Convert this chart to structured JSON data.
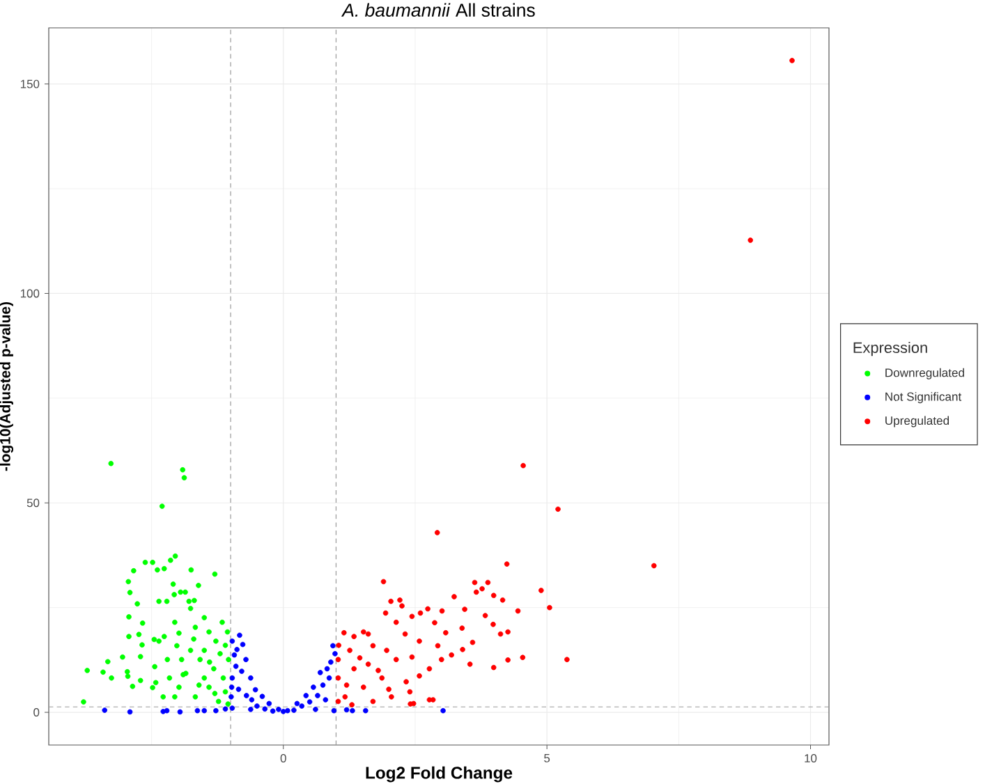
{
  "chart_data": {
    "type": "scatter",
    "title": "*A. baumannii* All strains",
    "xlabel": "Log2 Fold Change",
    "ylabel": "-log10(Adjusted p-value)",
    "legend_title": "Expression",
    "xlim": [
      -4.45,
      10.35
    ],
    "ylim": [
      -7.8,
      163.4
    ],
    "xticks": [
      0,
      5,
      10
    ],
    "yticks": [
      0,
      50,
      100,
      150
    ],
    "grid": true,
    "legend": "right",
    "marker": "circle",
    "ref_lines": [
      {
        "axis": "x",
        "value": -1,
        "line_style": "dashed",
        "color": "#999999"
      },
      {
        "axis": "x",
        "value": 1,
        "line_style": "dashed",
        "color": "#999999"
      },
      {
        "axis": "y",
        "value": 1.3,
        "line_style": "dashed",
        "color": "#999999"
      }
    ],
    "series": [
      {
        "name": "Downregulated",
        "color": "#00ff00",
        "x": [
          -3.27,
          -1.91,
          -1.88,
          -2.3,
          -3.79,
          -3.72,
          -3.42,
          -3.33,
          -3.26,
          -3.05,
          -2.96,
          -2.94,
          -2.91,
          -2.84,
          -2.62,
          -2.48,
          -2.39,
          -2.26,
          -2.14,
          -2.05,
          -1.75,
          -1.3,
          -2.77,
          -2.93,
          -2.67,
          -2.74,
          -2.93,
          -2.68,
          -2.71,
          -2.95,
          -2.86,
          -2.71,
          -2.48,
          -2.45,
          -2.36,
          -2.21,
          -2.09,
          -2.07,
          -1.95,
          -1.86,
          -1.79,
          -1.69,
          -1.61,
          -1.76,
          -2.06,
          -1.98,
          -2.26,
          -2.36,
          -2.44,
          -2.42,
          -2.28,
          -2.06,
          -1.85,
          -1.67,
          -1.5,
          -1.41,
          -1.16,
          -1.28,
          -1.06,
          -1.04,
          -1.14,
          -1.58,
          -1.41,
          -1.67,
          -1.23,
          -1.93,
          -2.2,
          -2.02,
          -1.76,
          -1.5,
          -1.32,
          -1.1,
          -1.98,
          -1.5,
          -2.16,
          -1.2,
          -1.4,
          -1.6,
          -1.9,
          -1.3,
          -1.1,
          -1.7,
          -1.05
        ],
        "values": [
          59.4,
          57.9,
          56.0,
          49.2,
          2.5,
          10.0,
          9.6,
          12.1,
          8.2,
          13.2,
          9.7,
          31.2,
          28.6,
          33.8,
          35.8,
          35.8,
          34.0,
          34.3,
          36.3,
          37.3,
          34.0,
          33.0,
          25.9,
          22.8,
          21.3,
          18.6,
          18.1,
          16.1,
          13.3,
          8.6,
          6.2,
          7.6,
          5.9,
          17.4,
          26.5,
          26.5,
          30.6,
          28.1,
          28.7,
          28.7,
          26.5,
          26.7,
          30.3,
          24.8,
          21.5,
          18.9,
          18.1,
          17.0,
          10.9,
          7.1,
          3.7,
          3.7,
          9.3,
          20.3,
          22.6,
          19.2,
          21.5,
          17.0,
          19.2,
          12.6,
          8.2,
          12.6,
          6.0,
          3.7,
          2.6,
          12.6,
          12.6,
          15.9,
          14.8,
          14.8,
          10.4,
          4.9,
          6.0,
          8.2,
          8.2,
          14.0,
          12.0,
          6.5,
          9.0,
          4.5,
          16.0,
          17.5,
          2.0
        ]
      },
      {
        "name": "Not Significant",
        "color": "#0000ff",
        "x": [
          -3.39,
          -2.91,
          -2.28,
          -2.21,
          -1.96,
          -1.63,
          -1.5,
          -1.28,
          -0.83,
          -0.77,
          -0.97,
          -0.93,
          -0.71,
          -0.79,
          -0.62,
          -0.97,
          -0.53,
          -0.4,
          -0.27,
          -0.09,
          0.0,
          0.08,
          0.26,
          0.43,
          0.57,
          0.7,
          0.83,
          0.94,
          0.87,
          -0.97,
          -0.62,
          0.61,
          0.96,
          1.31,
          1.56,
          3.03,
          -0.99,
          0.98,
          -0.9,
          -0.85,
          -0.7,
          -0.6,
          -0.5,
          -0.35,
          -0.2,
          0.2,
          0.35,
          0.5,
          0.65,
          0.75,
          0.9,
          0.8,
          1.2,
          -1.1,
          -0.98,
          -0.88
        ],
        "values": [
          0.5,
          0.1,
          0.2,
          0.4,
          0.1,
          0.4,
          0.4,
          0.4,
          18.4,
          16.2,
          17.0,
          13.7,
          12.6,
          9.8,
          8.2,
          8.2,
          5.4,
          3.8,
          2.1,
          0.7,
          0.2,
          0.4,
          2.1,
          4.0,
          6.0,
          9.5,
          10.4,
          15.9,
          8.2,
          1.0,
          0.7,
          0.7,
          0.4,
          0.4,
          0.4,
          0.4,
          3.7,
          14.0,
          11.0,
          5.5,
          4.0,
          3.0,
          1.5,
          0.8,
          0.3,
          0.5,
          1.5,
          2.5,
          4.0,
          6.5,
          12.0,
          3.0,
          0.6,
          0.8,
          6.0,
          15.0
        ]
      },
      {
        "name": "Upregulated",
        "color": "#ff0000",
        "x": [
          4.55,
          5.21,
          2.92,
          4.24,
          7.03,
          1.9,
          4.89,
          5.05,
          5.38,
          4.54,
          4.26,
          3.99,
          3.63,
          3.88,
          3.77,
          3.66,
          3.99,
          4.16,
          3.24,
          3.44,
          3.01,
          2.74,
          2.21,
          2.04,
          1.94,
          2.25,
          2.14,
          2.44,
          2.6,
          2.87,
          3.08,
          3.83,
          3.98,
          4.26,
          4.45,
          4.12,
          3.39,
          3.59,
          3.4,
          3.19,
          3.0,
          3.54,
          2.77,
          2.58,
          2.4,
          2.77,
          2.41,
          2.33,
          1.15,
          1.34,
          1.52,
          1.61,
          1.04,
          1.26,
          1.7,
          1.96,
          2.14,
          1.87,
          1.52,
          1.17,
          1.04,
          1.7,
          2.05,
          1.34,
          1.61,
          1.04,
          2.58,
          2.31,
          2.93,
          2.44,
          9.65,
          8.86,
          2.84,
          2.47,
          1.2,
          1.45,
          1.8,
          1.05,
          2.0,
          1.3
        ],
        "values": [
          58.9,
          48.5,
          42.9,
          35.4,
          35.0,
          31.2,
          29.1,
          25.0,
          12.6,
          13.1,
          12.5,
          10.7,
          31.0,
          31.0,
          29.5,
          28.7,
          27.9,
          26.8,
          27.6,
          24.6,
          24.2,
          24.7,
          26.8,
          26.5,
          23.7,
          25.4,
          21.5,
          22.9,
          23.7,
          21.4,
          19.0,
          23.1,
          21.0,
          19.2,
          24.2,
          18.7,
          20.1,
          16.7,
          15.0,
          13.7,
          12.6,
          11.5,
          10.4,
          8.7,
          4.9,
          3.0,
          2.0,
          7.3,
          19.0,
          18.1,
          19.2,
          18.7,
          12.6,
          14.8,
          15.9,
          14.8,
          12.6,
          8.2,
          6.0,
          3.7,
          8.2,
          2.6,
          3.7,
          10.4,
          11.5,
          2.6,
          17.0,
          18.7,
          15.9,
          13.2,
          155.6,
          112.7,
          3.0,
          2.1,
          6.5,
          13.0,
          10.0,
          16.0,
          5.5,
          1.8
        ]
      }
    ]
  }
}
